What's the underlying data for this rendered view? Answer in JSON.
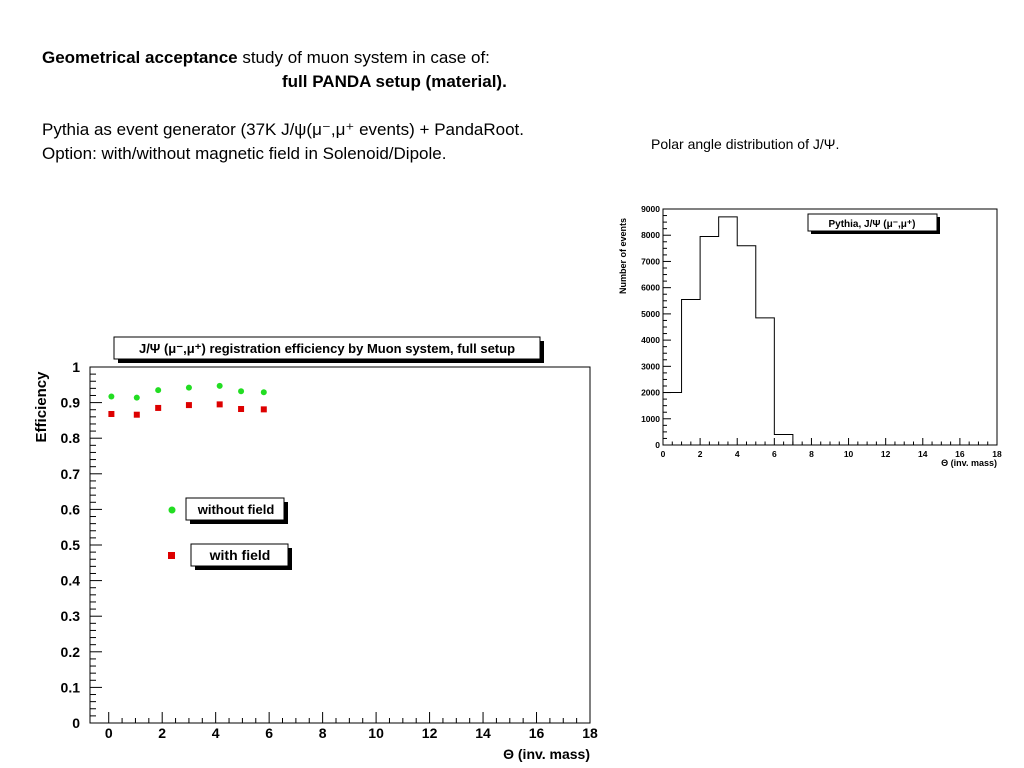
{
  "heading": {
    "bold_part": "Geometrical acceptance",
    "rest_part": " study of muon system in case of:",
    "subline": "full PANDA setup (material).",
    "gen_line": "Pythia as event generator (37K J/ψ(μ⁻,μ⁺ events) + PandaRoot.",
    "option_line": "Option: with/without magnetic field in Solenoid/Dipole."
  },
  "polar_caption": "Polar angle distribution of J/Ψ.",
  "chart_data": [
    {
      "type": "bar",
      "title": "Pythia, J/Ψ (μ⁻,μ⁺)",
      "xlabel": "Θ (inv. mass)",
      "ylabel": "Number of events",
      "xlim": [
        0,
        18
      ],
      "ylim": [
        0,
        9000
      ],
      "x_ticks": [
        "0",
        "2",
        "4",
        "6",
        "8",
        "10",
        "12",
        "14",
        "16",
        "18"
      ],
      "y_ticks": [
        "0",
        "1000",
        "2000",
        "3000",
        "4000",
        "5000",
        "6000",
        "7000",
        "8000",
        "9000"
      ],
      "bin_edges": [
        0,
        1,
        2,
        3,
        4,
        5,
        6,
        7,
        8,
        9,
        10,
        11,
        12,
        13,
        14,
        15,
        16,
        17,
        18
      ],
      "values": [
        2000,
        5550,
        7950,
        8700,
        7600,
        4850,
        400,
        0,
        0,
        0,
        0,
        0,
        0,
        0,
        0,
        0,
        0,
        0
      ]
    },
    {
      "type": "scatter",
      "title": "J/Ψ (μ⁻,μ⁺) registration efficiency by Muon system, full setup",
      "xlabel": "Θ (inv. mass)",
      "ylabel": "Efficiency",
      "xlim": [
        -0.7,
        18
      ],
      "ylim": [
        0,
        1
      ],
      "x_ticks": [
        "0",
        "2",
        "4",
        "6",
        "8",
        "10",
        "12",
        "14",
        "16",
        "18"
      ],
      "y_ticks": [
        "0",
        "0.1",
        "0.2",
        "0.3",
        "0.4",
        "0.5",
        "0.6",
        "0.7",
        "0.8",
        "0.9",
        "1"
      ],
      "series": [
        {
          "name": "without field",
          "color": "#22dd22",
          "marker": "circle",
          "x": [
            0.1,
            1.05,
            1.85,
            3.0,
            4.15,
            4.95,
            5.8
          ],
          "y": [
            0.917,
            0.914,
            0.935,
            0.942,
            0.947,
            0.932,
            0.929
          ]
        },
        {
          "name": "with field",
          "color": "#dd0000",
          "marker": "square",
          "x": [
            0.1,
            1.05,
            1.85,
            3.0,
            4.15,
            4.95,
            5.8
          ],
          "y": [
            0.868,
            0.866,
            0.885,
            0.893,
            0.895,
            0.882,
            0.881
          ]
        }
      ]
    }
  ]
}
